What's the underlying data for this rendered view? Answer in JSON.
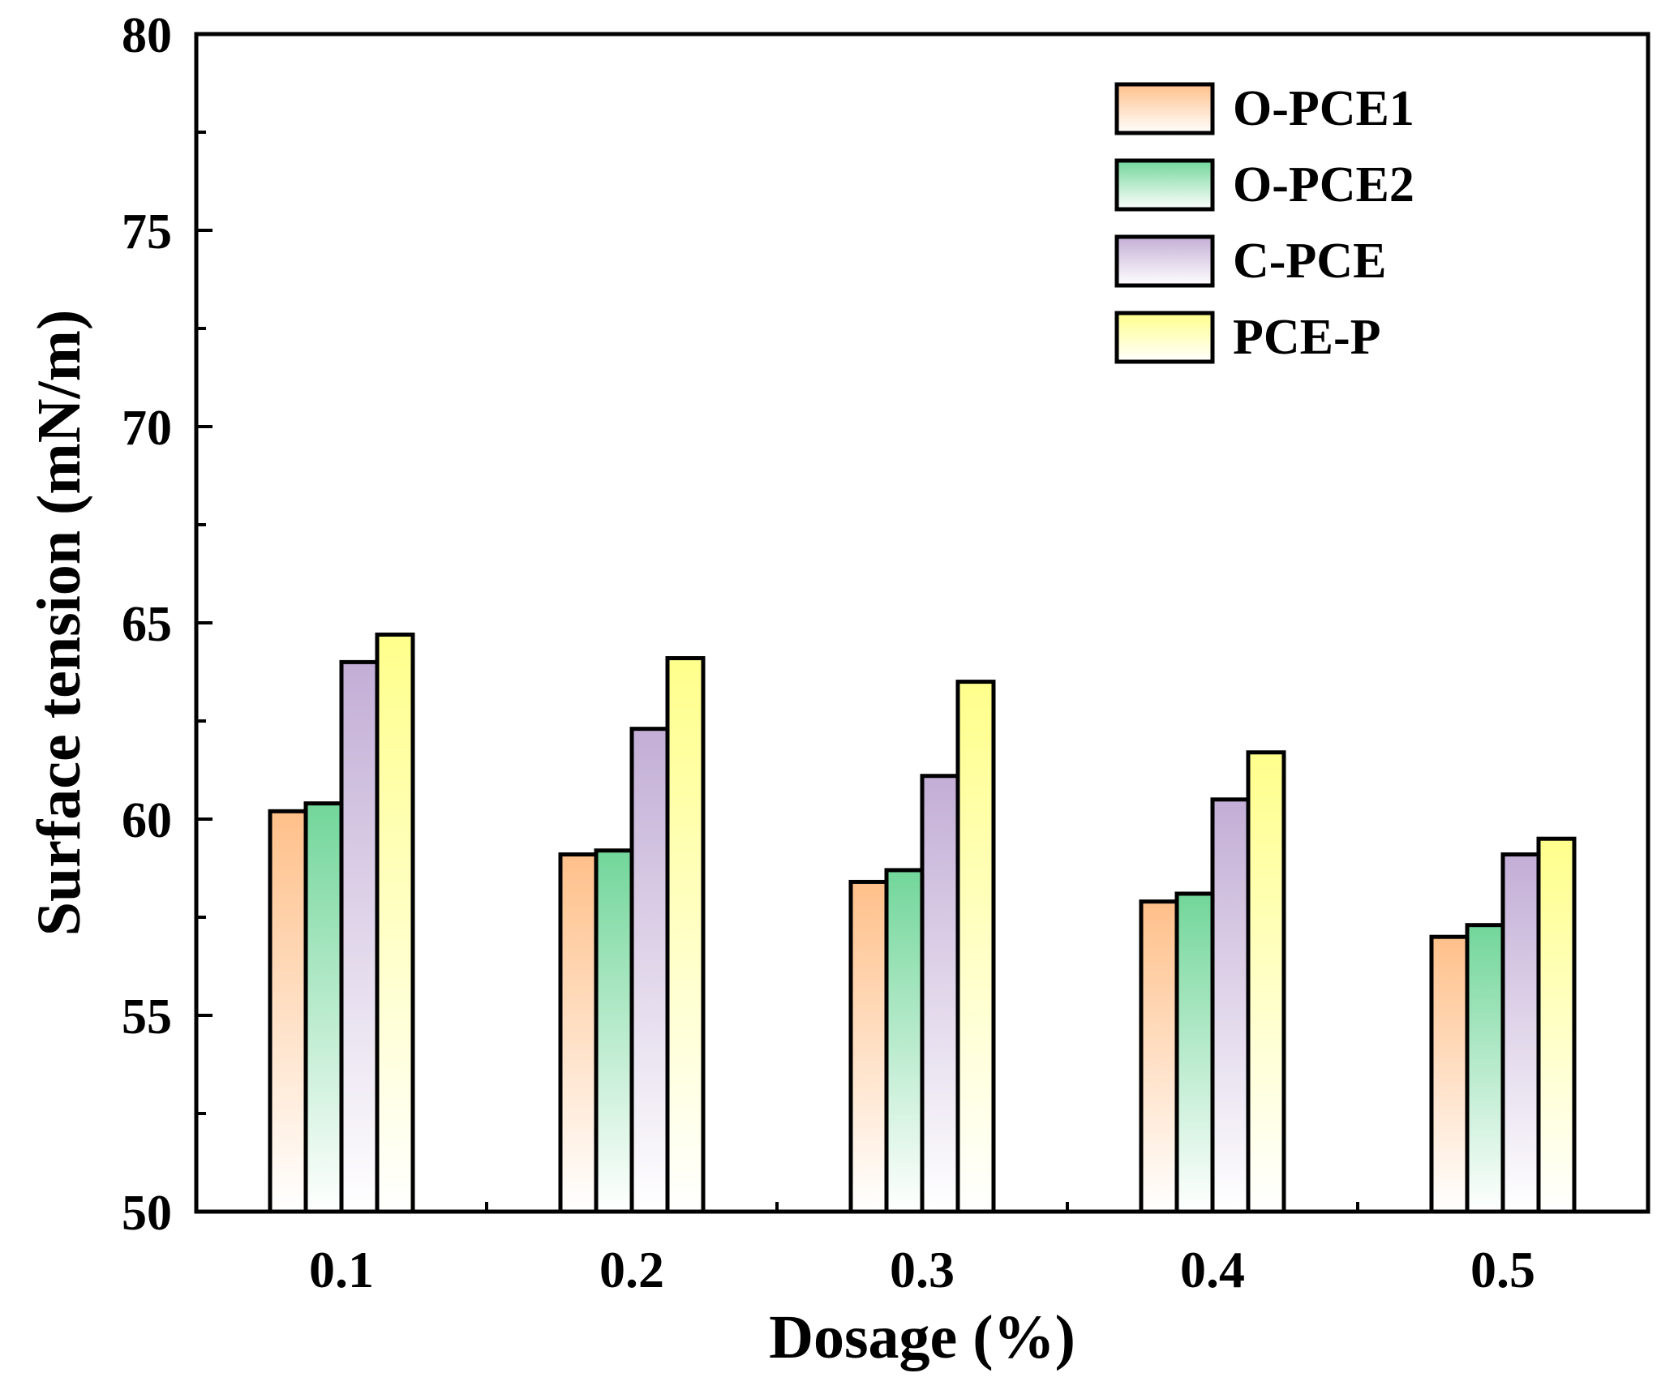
{
  "chart_data": {
    "type": "bar",
    "title": "",
    "xlabel": "Dosage (%)",
    "ylabel": "Surface tension (mN/m)",
    "categories": [
      "0.1",
      "0.2",
      "0.3",
      "0.4",
      "0.5"
    ],
    "ylim": [
      50,
      80
    ],
    "yticks": [
      "50",
      "55",
      "60",
      "65",
      "70",
      "75",
      "80"
    ],
    "grid": false,
    "legend_position": "top-right",
    "series": [
      {
        "name": "O-PCE1",
        "color": "#ffc08a",
        "values": [
          60.2,
          59.1,
          58.4,
          57.9,
          57.0
        ]
      },
      {
        "name": "O-PCE2",
        "color": "#72d69a",
        "values": [
          60.4,
          59.2,
          58.7,
          58.1,
          57.3
        ]
      },
      {
        "name": "C-PCE",
        "color": "#c3aed6",
        "values": [
          64.0,
          62.3,
          61.1,
          60.5,
          59.1
        ]
      },
      {
        "name": "PCE-P",
        "color": "#ffff8c",
        "values": [
          64.7,
          64.1,
          63.5,
          61.7,
          59.5
        ]
      }
    ]
  }
}
